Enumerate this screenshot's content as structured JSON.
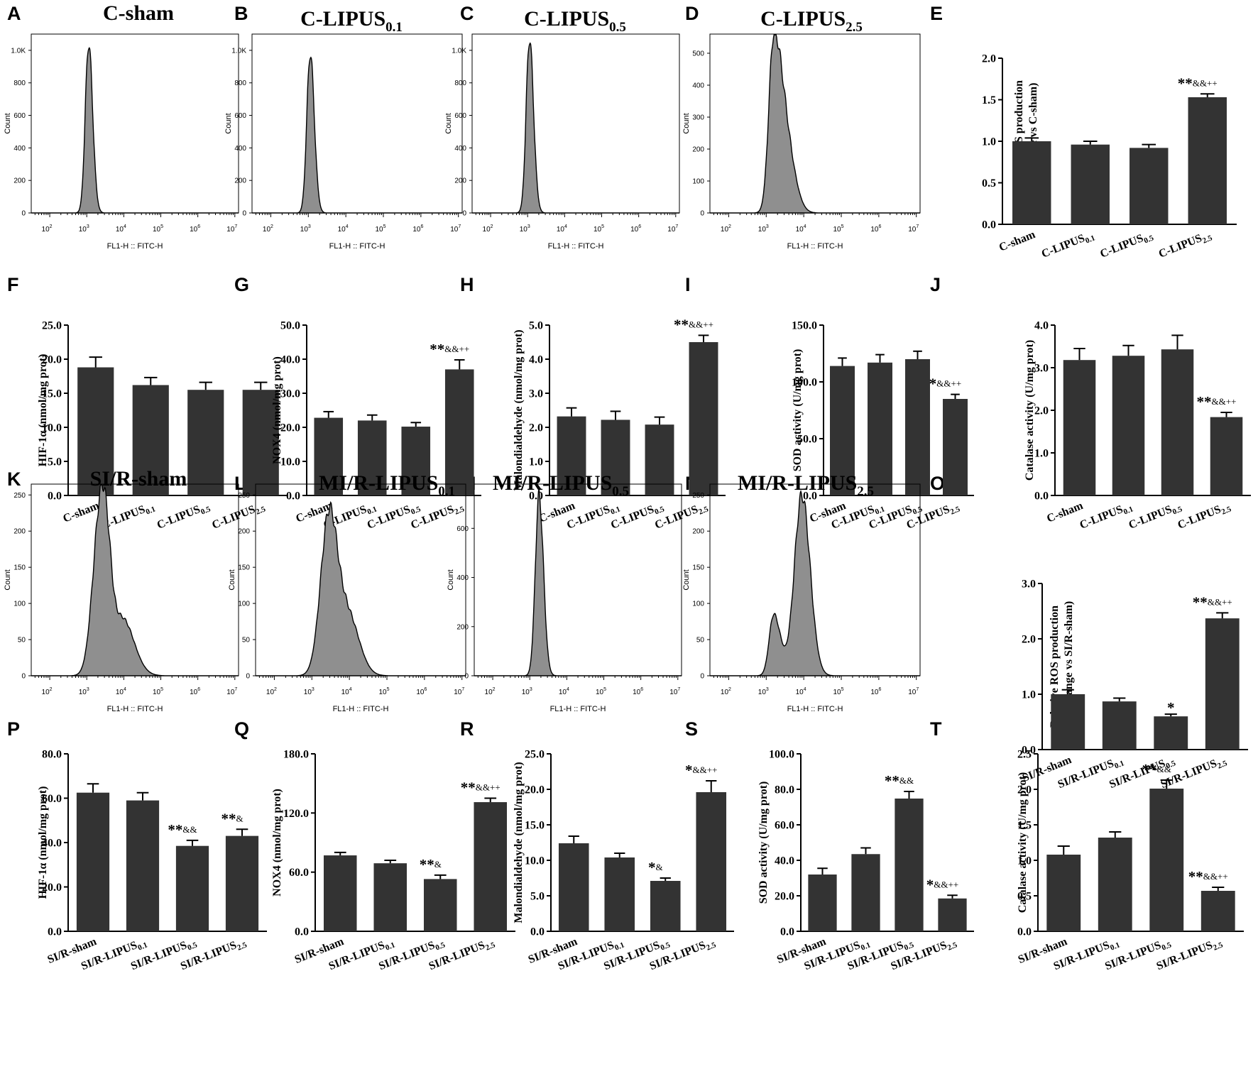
{
  "figure": {
    "histogram_x_label": "FL1-H :: FITC-H",
    "histogram_y_label": "Count",
    "histogram_x_ticks": [
      {
        "base": "10",
        "exp": "2"
      },
      {
        "base": "10",
        "exp": "3"
      },
      {
        "base": "10",
        "exp": "4"
      },
      {
        "base": "10",
        "exp": "5"
      },
      {
        "base": "10",
        "exp": "6"
      },
      {
        "base": "10",
        "exp": "7"
      }
    ],
    "colors": {
      "bar": "#333333",
      "hist_fill": "#8f8f8f",
      "axis": "#000000"
    }
  },
  "chart_data": [
    {
      "id": "A",
      "type": "histogram",
      "title": "C-sham",
      "title_sub": "",
      "x_scale": "log10",
      "x_range": [
        1.5,
        7.1
      ],
      "ylim": [
        0,
        1100
      ],
      "yticks": [
        "0",
        "200",
        "400",
        "600",
        "800",
        "1.0K"
      ],
      "ytick_values": [
        0,
        200,
        400,
        600,
        800,
        1000
      ],
      "distribution": [
        {
          "center": 3.05,
          "sigma_left": 0.09,
          "sigma_right": 0.11,
          "peak": 1040
        }
      ]
    },
    {
      "id": "B",
      "type": "histogram",
      "title": "C-LIPUS",
      "title_sub": "0.1",
      "x_scale": "log10",
      "x_range": [
        1.5,
        7.1
      ],
      "ylim": [
        0,
        1100
      ],
      "yticks": [
        "0",
        "200",
        "400",
        "600",
        "800",
        "1.0K"
      ],
      "ytick_values": [
        0,
        200,
        400,
        600,
        800,
        1000
      ],
      "distribution": [
        {
          "center": 3.05,
          "sigma_left": 0.09,
          "sigma_right": 0.11,
          "peak": 980
        }
      ]
    },
    {
      "id": "C",
      "type": "histogram",
      "title": "C-LIPUS",
      "title_sub": "0.5",
      "x_scale": "log10",
      "x_range": [
        1.5,
        7.1
      ],
      "ylim": [
        0,
        1100
      ],
      "yticks": [
        "0",
        "200",
        "400",
        "600",
        "800",
        "1.0K"
      ],
      "ytick_values": [
        0,
        200,
        400,
        600,
        800,
        1000
      ],
      "distribution": [
        {
          "center": 3.05,
          "sigma_left": 0.09,
          "sigma_right": 0.11,
          "peak": 1070
        }
      ]
    },
    {
      "id": "D",
      "type": "histogram",
      "title": "C-LIPUS",
      "title_sub": "2.5",
      "x_scale": "log10",
      "x_range": [
        1.5,
        7.1
      ],
      "ylim": [
        0,
        560
      ],
      "yticks": [
        "0",
        "100",
        "200",
        "300",
        "400",
        "500"
      ],
      "ytick_values": [
        0,
        100,
        200,
        300,
        400,
        500
      ],
      "distribution": [
        {
          "center": 3.2,
          "sigma_left": 0.13,
          "sigma_right": 0.24,
          "peak": 545
        },
        {
          "center": 3.6,
          "sigma_left": 0.2,
          "sigma_right": 0.22,
          "peak": 130
        }
      ]
    },
    {
      "id": "E",
      "type": "bar",
      "ylabel": "Relative ROS production",
      "ylabel2": "(fold change vs C-sham)",
      "ylim": [
        0,
        2.0
      ],
      "yticks": [
        "0.0",
        "0.5",
        "1.0",
        "1.5",
        "2.0"
      ],
      "ytick_values": [
        0,
        0.5,
        1.0,
        1.5,
        2.0
      ],
      "categories": [
        {
          "base": "C-sham",
          "sub": ""
        },
        {
          "base": "C-LIPUS",
          "sub": "0.1"
        },
        {
          "base": "C-LIPUS",
          "sub": "0.5"
        },
        {
          "base": "C-LIPUS",
          "sub": "2.5"
        }
      ],
      "values": [
        1.0,
        0.96,
        0.92,
        1.53
      ],
      "errors": [
        0.04,
        0.04,
        0.04,
        0.04
      ],
      "significance": [
        {
          "index": 3,
          "stars": "**",
          "marks": "&&++"
        }
      ]
    },
    {
      "id": "F",
      "type": "bar",
      "ylabel": "HIF-1α (nmol/mg prot)",
      "ylim": [
        0,
        25
      ],
      "yticks": [
        "0.0",
        "5.0",
        "10.0",
        "15.0",
        "20.0",
        "25.0"
      ],
      "ytick_values": [
        0,
        5,
        10,
        15,
        20,
        25
      ],
      "categories": [
        {
          "base": "C-sham",
          "sub": ""
        },
        {
          "base": "C-LIPUS",
          "sub": "0.1"
        },
        {
          "base": "C-LIPUS",
          "sub": "0.5"
        },
        {
          "base": "C-LIPUS",
          "sub": "2.5"
        }
      ],
      "values": [
        18.8,
        16.2,
        15.5,
        15.5
      ],
      "errors": [
        1.5,
        1.1,
        1.1,
        1.1
      ],
      "significance": []
    },
    {
      "id": "G",
      "type": "bar",
      "ylabel": "NOX4 (nmol/mg prot)",
      "ylim": [
        0,
        50
      ],
      "yticks": [
        "0.0",
        "10.0",
        "20.0",
        "30.0",
        "40.0",
        "50.0"
      ],
      "ytick_values": [
        0,
        10,
        20,
        30,
        40,
        50
      ],
      "categories": [
        {
          "base": "C-sham",
          "sub": ""
        },
        {
          "base": "C-LIPUS",
          "sub": "0.1"
        },
        {
          "base": "C-LIPUS",
          "sub": "0.5"
        },
        {
          "base": "C-LIPUS",
          "sub": "2.5"
        }
      ],
      "values": [
        22.8,
        22.0,
        20.2,
        37.0
      ],
      "errors": [
        1.8,
        1.6,
        1.2,
        2.8
      ],
      "significance": [
        {
          "index": 3,
          "stars": "**",
          "marks": "&&++"
        }
      ]
    },
    {
      "id": "H",
      "type": "bar",
      "ylabel": "Malondialdehyde (nmol/mg prot)",
      "ylim": [
        0,
        5
      ],
      "yticks": [
        "0.0",
        "1.0",
        "2.0",
        "3.0",
        "4.0",
        "5.0"
      ],
      "ytick_values": [
        0,
        1,
        2,
        3,
        4,
        5
      ],
      "categories": [
        {
          "base": "C-sham",
          "sub": ""
        },
        {
          "base": "C-LIPUS",
          "sub": "0.1"
        },
        {
          "base": "C-LIPUS",
          "sub": "0.5"
        },
        {
          "base": "C-LIPUS",
          "sub": "2.5"
        }
      ],
      "values": [
        2.32,
        2.22,
        2.08,
        4.5
      ],
      "errors": [
        0.25,
        0.25,
        0.22,
        0.2
      ],
      "significance": [
        {
          "index": 3,
          "stars": "**",
          "marks": "&&++"
        }
      ]
    },
    {
      "id": "I",
      "type": "bar",
      "ylabel": "SOD activity (U/mg prot)",
      "ylim": [
        0,
        150
      ],
      "yticks": [
        "0.0",
        "50.0",
        "100.0",
        "150.0"
      ],
      "ytick_values": [
        0,
        50,
        100,
        150
      ],
      "categories": [
        {
          "base": "C-sham",
          "sub": ""
        },
        {
          "base": "C-LIPUS",
          "sub": "0.1"
        },
        {
          "base": "C-LIPUS",
          "sub": "0.5"
        },
        {
          "base": "C-LIPUS",
          "sub": "2.5"
        }
      ],
      "values": [
        114,
        117,
        120,
        85
      ],
      "errors": [
        7,
        7,
        7,
        4
      ],
      "significance": [
        {
          "index": 3,
          "stars": "*",
          "marks": "&&++"
        }
      ]
    },
    {
      "id": "J",
      "type": "bar",
      "ylabel": "Catalase activity (U/mg prot)",
      "ylim": [
        0,
        4
      ],
      "yticks": [
        "0.0",
        "1.0",
        "2.0",
        "3.0",
        "4.0"
      ],
      "ytick_values": [
        0,
        1,
        2,
        3,
        4
      ],
      "categories": [
        {
          "base": "C-sham",
          "sub": ""
        },
        {
          "base": "C-LIPUS",
          "sub": "0.1"
        },
        {
          "base": "C-LIPUS",
          "sub": "0.5"
        },
        {
          "base": "C-LIPUS",
          "sub": "2.5"
        }
      ],
      "values": [
        3.18,
        3.28,
        3.43,
        1.84
      ],
      "errors": [
        0.27,
        0.24,
        0.33,
        0.11
      ],
      "significance": [
        {
          "index": 3,
          "stars": "**",
          "marks": "&&++"
        }
      ]
    },
    {
      "id": "K",
      "type": "histogram",
      "title": "SI/R-sham",
      "title_sub": "",
      "x_scale": "log10",
      "x_range": [
        1.5,
        7.1
      ],
      "ylim": [
        0,
        265
      ],
      "yticks": [
        "0",
        "50",
        "100",
        "150",
        "200",
        "250"
      ],
      "ytick_values": [
        0,
        50,
        100,
        150,
        200,
        250
      ],
      "distribution": [
        {
          "center": 3.35,
          "sigma_left": 0.2,
          "sigma_right": 0.18,
          "peak": 205
        },
        {
          "center": 3.55,
          "sigma_left": 0.15,
          "sigma_right": 0.14,
          "peak": 85
        },
        {
          "center": 3.95,
          "sigma_left": 0.3,
          "sigma_right": 0.32,
          "peak": 80
        }
      ]
    },
    {
      "id": "L",
      "type": "histogram",
      "title": "MI/R-LIPUS",
      "title_sub": "0.1",
      "x_scale": "log10",
      "x_range": [
        1.5,
        7.1
      ],
      "ylim": [
        0,
        265
      ],
      "yticks": [
        "0",
        "50",
        "100",
        "150",
        "200",
        "250"
      ],
      "ytick_values": [
        0,
        50,
        100,
        150,
        200,
        250
      ],
      "distribution": [
        {
          "center": 3.45,
          "sigma_left": 0.22,
          "sigma_right": 0.22,
          "peak": 210
        },
        {
          "center": 3.95,
          "sigma_left": 0.3,
          "sigma_right": 0.3,
          "peak": 85
        }
      ]
    },
    {
      "id": "M",
      "type": "histogram",
      "title": "MI/R-LIPUS",
      "title_sub": "0.5",
      "x_scale": "log10",
      "x_range": [
        1.5,
        7.1
      ],
      "ylim": [
        0,
        780
      ],
      "yticks": [
        "0",
        "200",
        "400",
        "600"
      ],
      "ytick_values": [
        0,
        200,
        400,
        600
      ],
      "distribution": [
        {
          "center": 3.25,
          "sigma_left": 0.1,
          "sigma_right": 0.12,
          "peak": 735
        }
      ]
    },
    {
      "id": "N",
      "type": "histogram",
      "title": "MI/R-LIPUS",
      "title_sub": "2.5",
      "x_scale": "log10",
      "x_range": [
        1.5,
        7.1
      ],
      "ylim": [
        0,
        265
      ],
      "yticks": [
        "0",
        "50",
        "100",
        "150",
        "200",
        "250"
      ],
      "ytick_values": [
        0,
        50,
        100,
        150,
        200,
        250
      ],
      "distribution": [
        {
          "center": 3.95,
          "sigma_left": 0.2,
          "sigma_right": 0.22,
          "peak": 250
        },
        {
          "center": 3.2,
          "sigma_left": 0.12,
          "sigma_right": 0.18,
          "peak": 85
        }
      ]
    },
    {
      "id": "O",
      "type": "bar",
      "ylabel": "Relative ROS production",
      "ylabel2": "(fold change vs SI/R-sham)",
      "ylim": [
        0,
        3.0
      ],
      "yticks": [
        "0.0",
        "1.0",
        "2.0",
        "3.0"
      ],
      "ytick_values": [
        0,
        1,
        2,
        3
      ],
      "categories": [
        {
          "base": "SI/R-sham",
          "sub": ""
        },
        {
          "base": "SI/R-LIPUS",
          "sub": "0.1"
        },
        {
          "base": "SI/R-LIPUS",
          "sub": "0.5"
        },
        {
          "base": "SI/R-LIPUS",
          "sub": "2.5"
        }
      ],
      "values": [
        1.0,
        0.87,
        0.6,
        2.37
      ],
      "errors": [
        0.08,
        0.06,
        0.04,
        0.1
      ],
      "significance": [
        {
          "index": 2,
          "stars": "*",
          "marks": ""
        },
        {
          "index": 3,
          "stars": "**",
          "marks": "&&++"
        }
      ]
    },
    {
      "id": "P",
      "type": "bar",
      "ylabel": "HIF-1α (nmol/mg prot)",
      "ylim": [
        0,
        80
      ],
      "yticks": [
        "0.0",
        "20.0",
        "40.0",
        "60.0",
        "80.0"
      ],
      "ytick_values": [
        0,
        20,
        40,
        60,
        80
      ],
      "categories": [
        {
          "base": "SI/R-sham",
          "sub": ""
        },
        {
          "base": "SI/R-LIPUS",
          "sub": "0.1"
        },
        {
          "base": "SI/R-LIPUS",
          "sub": "0.5"
        },
        {
          "base": "SI/R-LIPUS",
          "sub": "2.5"
        }
      ],
      "values": [
        62.5,
        59,
        38.5,
        43
      ],
      "errors": [
        4,
        3.5,
        2.5,
        3
      ],
      "significance": [
        {
          "index": 2,
          "stars": "**",
          "marks": "&&"
        },
        {
          "index": 3,
          "stars": "**",
          "marks": "&"
        }
      ]
    },
    {
      "id": "Q",
      "type": "bar",
      "ylabel": "NOX4 (nmol/mg prot)",
      "ylim": [
        0,
        180
      ],
      "yticks": [
        "0.0",
        "60.0",
        "120.0",
        "180.0"
      ],
      "ytick_values": [
        0,
        60,
        120,
        180
      ],
      "categories": [
        {
          "base": "SI/R-sham",
          "sub": ""
        },
        {
          "base": "SI/R-LIPUS",
          "sub": "0.1"
        },
        {
          "base": "SI/R-LIPUS",
          "sub": "0.5"
        },
        {
          "base": "SI/R-LIPUS",
          "sub": "2.5"
        }
      ],
      "values": [
        77,
        69,
        53,
        131
      ],
      "errors": [
        3,
        3,
        4,
        4
      ],
      "significance": [
        {
          "index": 2,
          "stars": "**",
          "marks": "&"
        },
        {
          "index": 3,
          "stars": "**",
          "marks": "&&++"
        }
      ]
    },
    {
      "id": "R",
      "type": "bar",
      "ylabel": "Malondialdehyde (nmol/mg prot)",
      "ylim": [
        0,
        25
      ],
      "yticks": [
        "0.0",
        "5.0",
        "10.0",
        "15.0",
        "20.0",
        "25.0"
      ],
      "ytick_values": [
        0,
        5,
        10,
        15,
        20,
        25
      ],
      "categories": [
        {
          "base": "SI/R-sham",
          "sub": ""
        },
        {
          "base": "SI/R-LIPUS",
          "sub": "0.1"
        },
        {
          "base": "SI/R-LIPUS",
          "sub": "0.5"
        },
        {
          "base": "SI/R-LIPUS",
          "sub": "2.5"
        }
      ],
      "values": [
        12.4,
        10.4,
        7.1,
        19.6
      ],
      "errors": [
        1.0,
        0.6,
        0.4,
        1.6
      ],
      "significance": [
        {
          "index": 2,
          "stars": "*",
          "marks": "&"
        },
        {
          "index": 3,
          "stars": "*",
          "marks": "&&++"
        }
      ]
    },
    {
      "id": "S",
      "type": "bar",
      "ylabel": "SOD activity (U/mg prot)",
      "ylim": [
        0,
        100
      ],
      "yticks": [
        "0.0",
        "20.0",
        "40.0",
        "60.0",
        "80.0",
        "100.0"
      ],
      "ytick_values": [
        0,
        20,
        40,
        60,
        80,
        100
      ],
      "categories": [
        {
          "base": "SI/R-sham",
          "sub": ""
        },
        {
          "base": "SI/R-LIPUS",
          "sub": "0.1"
        },
        {
          "base": "SI/R-LIPUS",
          "sub": "0.5"
        },
        {
          "base": "SI/R-LIPUS",
          "sub": "2.5"
        }
      ],
      "values": [
        32,
        43.5,
        74.8,
        18.5
      ],
      "errors": [
        3.5,
        3.5,
        4,
        1.8
      ],
      "significance": [
        {
          "index": 2,
          "stars": "**",
          "marks": "&&"
        },
        {
          "index": 3,
          "stars": "*",
          "marks": "&&++"
        }
      ]
    },
    {
      "id": "T",
      "type": "bar",
      "ylabel": "Catalase activity (U/mg prot)",
      "ylim": [
        0,
        2.5
      ],
      "yticks": [
        "0.0",
        "0.5",
        "1.0",
        "1.5",
        "2.0",
        "2.5"
      ],
      "ytick_values": [
        0,
        0.5,
        1,
        1.5,
        2,
        2.5
      ],
      "categories": [
        {
          "base": "SI/R-sham",
          "sub": ""
        },
        {
          "base": "SI/R-LIPUS",
          "sub": "0.1"
        },
        {
          "base": "SI/R-LIPUS",
          "sub": "0.5"
        },
        {
          "base": "SI/R-LIPUS",
          "sub": "2.5"
        }
      ],
      "values": [
        1.08,
        1.32,
        2.01,
        0.57
      ],
      "errors": [
        0.12,
        0.08,
        0.12,
        0.05
      ],
      "significance": [
        {
          "index": 2,
          "stars": "**",
          "marks": "&&"
        },
        {
          "index": 3,
          "stars": "**",
          "marks": "&&++"
        }
      ]
    }
  ]
}
